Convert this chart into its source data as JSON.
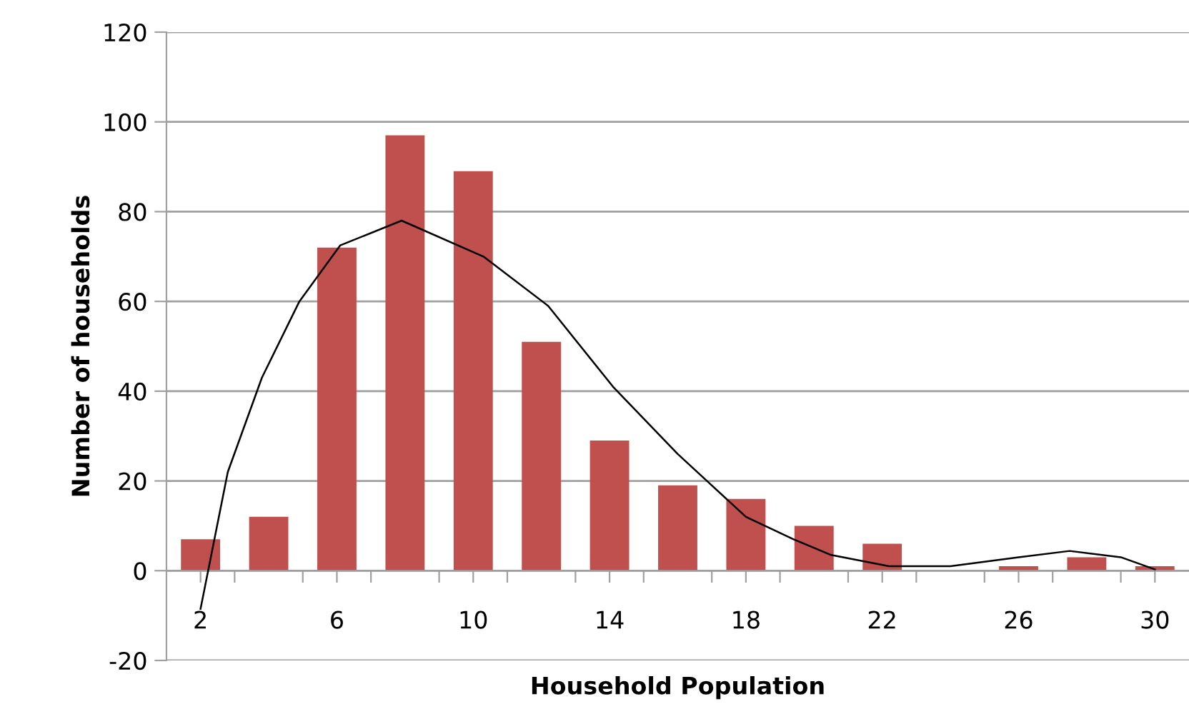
{
  "chart_data": {
    "type": "bar",
    "xlabel": "Household Population",
    "ylabel": "Number of households",
    "x": [
      2,
      4,
      6,
      8,
      10,
      12,
      14,
      16,
      18,
      20,
      22,
      24,
      26,
      28,
      30
    ],
    "series": [
      {
        "color": "#c0504d",
        "values": [
          7,
          12,
          72,
          97,
          89,
          51,
          29,
          19,
          16,
          10,
          6,
          0,
          1,
          3,
          1
        ]
      },
      {
        "type": "line",
        "color": "#000000",
        "x": [
          2,
          2.8,
          3.8,
          4.9,
          6.1,
          7.9,
          10.3,
          12.2,
          14.1,
          16,
          17,
          18,
          19.4,
          20.5,
          22.2,
          24,
          26,
          27.5,
          29,
          30
        ],
        "values": [
          -8.5,
          22,
          43,
          60,
          72.5,
          78,
          70,
          59,
          41,
          26,
          19,
          12,
          7,
          3.5,
          1,
          1,
          3,
          4.4,
          3,
          0.3
        ]
      }
    ],
    "xlim": [
      1,
      31
    ],
    "xticks": [
      {
        "value": 2,
        "label": "2"
      },
      {
        "value": 3,
        "label": null
      },
      {
        "value": 5,
        "label": null
      },
      {
        "value": 6,
        "label": "6"
      },
      {
        "value": 7,
        "label": null
      },
      {
        "value": 9,
        "label": null
      },
      {
        "value": 10,
        "label": "10"
      },
      {
        "value": 11,
        "label": null
      },
      {
        "value": 13,
        "label": null
      },
      {
        "value": 14,
        "label": "14"
      },
      {
        "value": 15,
        "label": null
      },
      {
        "value": 17,
        "label": null
      },
      {
        "value": 18,
        "label": "18"
      },
      {
        "value": 19,
        "label": null
      },
      {
        "value": 21,
        "label": null
      },
      {
        "value": 22,
        "label": "22"
      },
      {
        "value": 23,
        "label": null
      },
      {
        "value": 25,
        "label": null
      },
      {
        "value": 26,
        "label": "26"
      },
      {
        "value": 27,
        "label": null
      },
      {
        "value": 29,
        "label": null
      },
      {
        "value": 30,
        "label": "30"
      }
    ],
    "ylim": [
      -20,
      120
    ],
    "yticks": [
      -20,
      0,
      20,
      40,
      60,
      80,
      100,
      120
    ],
    "grid": "y",
    "marker": "none",
    "line_style": "solid"
  }
}
